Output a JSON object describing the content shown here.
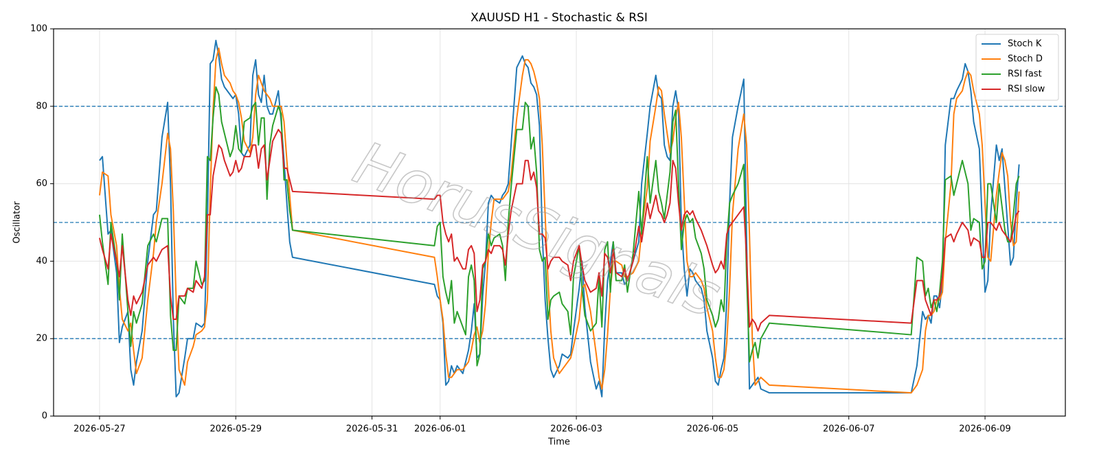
{
  "chart_data": {
    "type": "line",
    "title": "XAUUSD H1 - Stochastic & RSI",
    "x_label": "Time",
    "y_label": "Oscillator",
    "watermark": "HorusSignals",
    "grid": true,
    "legend": "upper right",
    "xlim": [
      "2026-05-26 07:48",
      "2026-06-10 04:18"
    ],
    "xticks": [
      "2026-05-27",
      "2026-05-29",
      "2026-05-31",
      "2026-06-01",
      "2026-06-03",
      "2026-06-05",
      "2026-06-07",
      "2026-06-09"
    ],
    "ylim": [
      0,
      100
    ],
    "yticks": [
      0,
      20,
      40,
      60,
      80,
      100
    ],
    "hlines": [
      20,
      50,
      80
    ],
    "hline_color": "#1f77b4",
    "x": [
      "2026-05-27 00:00",
      "2026-05-27 01:00",
      "2026-05-27 03:00",
      "2026-05-27 04:00",
      "2026-05-27 06:00",
      "2026-05-27 07:00",
      "2026-05-27 08:00",
      "2026-05-27 10:00",
      "2026-05-27 11:00",
      "2026-05-27 12:00",
      "2026-05-27 13:00",
      "2026-05-27 15:00",
      "2026-05-27 17:00",
      "2026-05-27 19:00",
      "2026-05-27 20:00",
      "2026-05-27 22:00",
      "2026-05-28 00:00",
      "2026-05-28 01:00",
      "2026-05-28 02:00",
      "2026-05-28 03:00",
      "2026-05-28 04:00",
      "2026-05-28 06:00",
      "2026-05-28 07:00",
      "2026-05-28 09:00",
      "2026-05-28 10:00",
      "2026-05-28 12:00",
      "2026-05-28 13:00",
      "2026-05-28 14:00",
      "2026-05-28 15:00",
      "2026-05-28 16:00",
      "2026-05-28 17:00",
      "2026-05-28 18:00",
      "2026-05-28 19:00",
      "2026-05-28 20:00",
      "2026-05-28 22:00",
      "2026-05-28 23:00",
      "2026-05-29 00:00",
      "2026-05-29 01:00",
      "2026-05-29 02:00",
      "2026-05-29 03:00",
      "2026-05-29 05:00",
      "2026-05-29 06:00",
      "2026-05-29 07:00",
      "2026-05-29 08:00",
      "2026-05-29 09:00",
      "2026-05-29 10:00",
      "2026-05-29 11:00",
      "2026-05-29 12:00",
      "2026-05-29 13:00",
      "2026-05-29 15:00",
      "2026-05-29 16:00",
      "2026-05-29 17:00",
      "2026-05-29 18:00",
      "2026-05-29 19:00",
      "2026-05-29 20:00",
      "2026-05-31 22:00",
      "2026-05-31 23:00",
      "2026-06-01 00:00",
      "2026-06-01 01:00",
      "2026-06-01 02:00",
      "2026-06-01 03:00",
      "2026-06-01 04:00",
      "2026-06-01 05:00",
      "2026-06-01 06:00",
      "2026-06-01 08:00",
      "2026-06-01 09:00",
      "2026-06-01 10:00",
      "2026-06-01 11:00",
      "2026-06-01 12:00",
      "2026-06-01 13:00",
      "2026-06-01 14:00",
      "2026-06-01 15:00",
      "2026-06-01 16:00",
      "2026-06-01 17:00",
      "2026-06-01 18:00",
      "2026-06-01 19:00",
      "2026-06-01 21:00",
      "2026-06-01 22:00",
      "2026-06-01 23:00",
      "2026-06-02 00:00",
      "2026-06-02 01:00",
      "2026-06-02 03:00",
      "2026-06-02 05:00",
      "2026-06-02 06:00",
      "2026-06-02 07:00",
      "2026-06-02 08:00",
      "2026-06-02 09:00",
      "2026-06-02 10:00",
      "2026-06-02 11:00",
      "2026-06-02 12:00",
      "2026-06-02 13:00",
      "2026-06-02 14:00",
      "2026-06-02 15:00",
      "2026-06-02 16:00",
      "2026-06-02 18:00",
      "2026-06-02 19:00",
      "2026-06-02 21:00",
      "2026-06-02 22:00",
      "2026-06-02 23:00",
      "2026-06-03 01:00",
      "2026-06-03 02:00",
      "2026-06-03 03:00",
      "2026-06-03 05:00",
      "2026-06-03 07:00",
      "2026-06-03 08:00",
      "2026-06-03 09:00",
      "2026-06-03 10:00",
      "2026-06-03 11:00",
      "2026-06-03 12:00",
      "2026-06-03 13:00",
      "2026-06-03 14:00",
      "2026-06-03 16:00",
      "2026-06-03 17:00",
      "2026-06-03 18:00",
      "2026-06-03 20:00",
      "2026-06-03 22:00",
      "2026-06-03 23:00",
      "2026-06-04 01:00",
      "2026-06-04 02:00",
      "2026-06-04 04:00",
      "2026-06-04 05:00",
      "2026-06-04 06:00",
      "2026-06-04 07:00",
      "2026-06-04 08:00",
      "2026-06-04 09:00",
      "2026-06-04 10:00",
      "2026-06-04 11:00",
      "2026-06-04 12:00",
      "2026-06-04 13:00",
      "2026-06-04 14:00",
      "2026-06-04 15:00",
      "2026-06-04 16:00",
      "2026-06-04 17:00",
      "2026-06-04 18:00",
      "2026-06-04 20:00",
      "2026-06-04 21:00",
      "2026-06-04 22:00",
      "2026-06-05 00:00",
      "2026-06-05 01:00",
      "2026-06-05 02:00",
      "2026-06-05 03:00",
      "2026-06-05 04:00",
      "2026-06-05 05:00",
      "2026-06-05 06:00",
      "2026-06-05 07:00",
      "2026-06-05 09:00",
      "2026-06-05 11:00",
      "2026-06-05 12:00",
      "2026-06-05 13:00",
      "2026-06-05 14:00",
      "2026-06-05 15:00",
      "2026-06-05 16:00",
      "2026-06-05 17:00",
      "2026-06-05 20:00",
      "2026-06-07 22:00",
      "2026-06-08 00:00",
      "2026-06-08 02:00",
      "2026-06-08 03:00",
      "2026-06-08 04:00",
      "2026-06-08 05:00",
      "2026-06-08 06:00",
      "2026-06-08 07:00",
      "2026-06-08 08:00",
      "2026-06-08 09:00",
      "2026-06-08 10:00",
      "2026-06-08 12:00",
      "2026-06-08 13:00",
      "2026-06-08 14:00",
      "2026-06-08 16:00",
      "2026-06-08 17:00",
      "2026-06-08 18:00",
      "2026-06-08 19:00",
      "2026-06-08 20:00",
      "2026-06-08 22:00",
      "2026-06-08 23:00",
      "2026-06-09 00:00",
      "2026-06-09 01:00",
      "2026-06-09 02:00",
      "2026-06-09 04:00",
      "2026-06-09 05:00",
      "2026-06-09 06:00",
      "2026-06-09 07:00",
      "2026-06-09 08:00",
      "2026-06-09 09:00",
      "2026-06-09 10:00",
      "2026-06-09 11:00",
      "2026-06-09 12:00"
    ],
    "series": [
      {
        "name": "Stoch K",
        "color": "#1f77b4",
        "values": [
          66,
          67,
          47,
          48,
          37,
          19,
          23,
          27,
          12,
          8,
          14,
          22,
          40,
          52,
          53,
          72,
          81,
          60,
          25,
          5,
          6,
          15,
          20,
          20,
          24,
          23,
          24,
          50,
          91,
          92,
          97,
          93,
          87,
          85,
          83,
          82,
          83,
          78,
          68,
          67,
          70,
          88,
          92,
          83,
          81,
          88,
          80,
          78,
          78,
          84,
          76,
          66,
          55,
          45,
          41,
          34,
          31,
          30,
          24,
          8,
          9,
          13,
          11,
          13,
          11,
          14,
          17,
          22,
          29,
          15,
          16,
          31,
          40,
          55,
          57,
          56,
          55,
          57,
          58,
          60,
          70,
          90,
          93,
          91,
          90,
          86,
          85,
          83,
          75,
          47,
          30,
          20,
          12,
          10,
          13,
          16,
          15,
          16,
          22,
          33,
          40,
          28,
          14,
          7,
          9,
          5,
          23,
          35,
          40,
          45,
          37,
          37,
          34,
          35,
          40,
          45,
          60,
          73,
          80,
          88,
          83,
          82,
          70,
          67,
          66,
          80,
          84,
          79,
          50,
          38,
          31,
          38,
          37,
          35,
          33,
          30,
          22,
          15,
          9,
          8,
          12,
          15,
          30,
          55,
          72,
          80,
          87,
          45,
          7,
          8,
          9,
          10,
          7,
          6,
          6,
          13,
          27,
          25,
          26,
          24,
          31,
          31,
          28,
          35,
          70,
          82,
          82,
          84,
          87,
          91,
          89,
          84,
          76,
          69,
          50,
          32,
          35,
          52,
          70,
          66,
          69,
          59,
          49,
          39,
          41,
          55,
          65
        ]
      },
      {
        "name": "Stoch D",
        "color": "#ff7f0e",
        "values": [
          57,
          63,
          62,
          52,
          44,
          33,
          25,
          22,
          24,
          17,
          11,
          15,
          30,
          42,
          50,
          60,
          73,
          69,
          53,
          30,
          12,
          8,
          14,
          18,
          21,
          22,
          23,
          30,
          58,
          79,
          92,
          95,
          91,
          88,
          86,
          84,
          83,
          81,
          77,
          71,
          68,
          72,
          83,
          88,
          86,
          84,
          83,
          82,
          80,
          80,
          80,
          76,
          66,
          57,
          48,
          41,
          36,
          30,
          25,
          16,
          10,
          10,
          11,
          12,
          12,
          13,
          14,
          17,
          21,
          23,
          19,
          22,
          29,
          42,
          50,
          56,
          56,
          56,
          57,
          58,
          62,
          77,
          88,
          92,
          92,
          91,
          89,
          86,
          82,
          70,
          52,
          35,
          22,
          15,
          11,
          12,
          14,
          15,
          18,
          25,
          33,
          34,
          27,
          16,
          10,
          7,
          12,
          21,
          33,
          40,
          40,
          39,
          36,
          36,
          37,
          40,
          48,
          59,
          71,
          80,
          85,
          84,
          78,
          73,
          68,
          71,
          77,
          81,
          72,
          56,
          40,
          36,
          36,
          37,
          35,
          33,
          28,
          22,
          15,
          10,
          10,
          12,
          19,
          33,
          52,
          69,
          78,
          70,
          47,
          20,
          8,
          9,
          10,
          8,
          6,
          8,
          12,
          22,
          26,
          26,
          27,
          30,
          30,
          32,
          45,
          60,
          78,
          82,
          84,
          87,
          89,
          88,
          84,
          78,
          70,
          55,
          41,
          40,
          57,
          63,
          68,
          66,
          62,
          50,
          44,
          45,
          58
        ]
      },
      {
        "name": "RSI fast",
        "color": "#2ca02c",
        "values": [
          52,
          45,
          34,
          50,
          40,
          30,
          47,
          27,
          18,
          27,
          24,
          29,
          44,
          47,
          45,
          51,
          51,
          26,
          17,
          17,
          31,
          29,
          33,
          33,
          40,
          34,
          35,
          67,
          66,
          77,
          85,
          83,
          76,
          73,
          67,
          69,
          75,
          69,
          68,
          76,
          77,
          80,
          81,
          70,
          77,
          77,
          56,
          70,
          75,
          80,
          78,
          61,
          61,
          53,
          48,
          44,
          49,
          50,
          36,
          32,
          29,
          35,
          24,
          27,
          23,
          21,
          36,
          39,
          35,
          13,
          16,
          38,
          40,
          47,
          44,
          46,
          47,
          44,
          35,
          50,
          59,
          74,
          74,
          81,
          80,
          69,
          72,
          63,
          43,
          40,
          41,
          25,
          30,
          31,
          32,
          29,
          27,
          21,
          36,
          44,
          33,
          26,
          22,
          24,
          36,
          23,
          43,
          45,
          32,
          45,
          35,
          35,
          39,
          32,
          42,
          58,
          47,
          67,
          55,
          66,
          58,
          55,
          51,
          57,
          63,
          76,
          79,
          60,
          43,
          50,
          52,
          50,
          51,
          46,
          42,
          38,
          30,
          26,
          23,
          25,
          30,
          27,
          45,
          55,
          57,
          60,
          65,
          36,
          14,
          17,
          19,
          15,
          20,
          24,
          21,
          41,
          40,
          31,
          33,
          28,
          30,
          27,
          32,
          40,
          61,
          62,
          57,
          60,
          66,
          63,
          60,
          48,
          51,
          50,
          38,
          40,
          60,
          60,
          50,
          60,
          54,
          48,
          45,
          45,
          52,
          60,
          62
        ]
      },
      {
        "name": "RSI slow",
        "color": "#d62728",
        "values": [
          46,
          43,
          38,
          47,
          40,
          36,
          44,
          30,
          26,
          31,
          29,
          32,
          39,
          41,
          40,
          43,
          44,
          31,
          25,
          25,
          31,
          31,
          33,
          32,
          35,
          33,
          36,
          52,
          52,
          62,
          66,
          70,
          69,
          66,
          62,
          63,
          66,
          63,
          64,
          67,
          67,
          70,
          70,
          64,
          69,
          70,
          61,
          66,
          71,
          74,
          73,
          64,
          64,
          61,
          58,
          56,
          57,
          57,
          50,
          47,
          45,
          47,
          40,
          41,
          38,
          38,
          43,
          44,
          42,
          27,
          30,
          39,
          40,
          43,
          42,
          44,
          44,
          43,
          39,
          47,
          53,
          60,
          60,
          66,
          66,
          61,
          63,
          59,
          47,
          47,
          46,
          38,
          40,
          41,
          41,
          40,
          39,
          35,
          40,
          44,
          39,
          35,
          32,
          33,
          37,
          31,
          42,
          41,
          37,
          43,
          37,
          36,
          38,
          35,
          40,
          49,
          45,
          55,
          51,
          57,
          53,
          52,
          50,
          52,
          55,
          66,
          64,
          55,
          48,
          52,
          53,
          52,
          53,
          51,
          48,
          46,
          44,
          39,
          37,
          38,
          40,
          38,
          47,
          49,
          50,
          52,
          54,
          41,
          23,
          25,
          24,
          22,
          24,
          26,
          24,
          35,
          35,
          30,
          28,
          26,
          30,
          30,
          31,
          36,
          46,
          47,
          45,
          47,
          50,
          49,
          48,
          44,
          46,
          45,
          41,
          41,
          50,
          50,
          48,
          50,
          48,
          47,
          46,
          45,
          48,
          52,
          53
        ]
      }
    ]
  }
}
